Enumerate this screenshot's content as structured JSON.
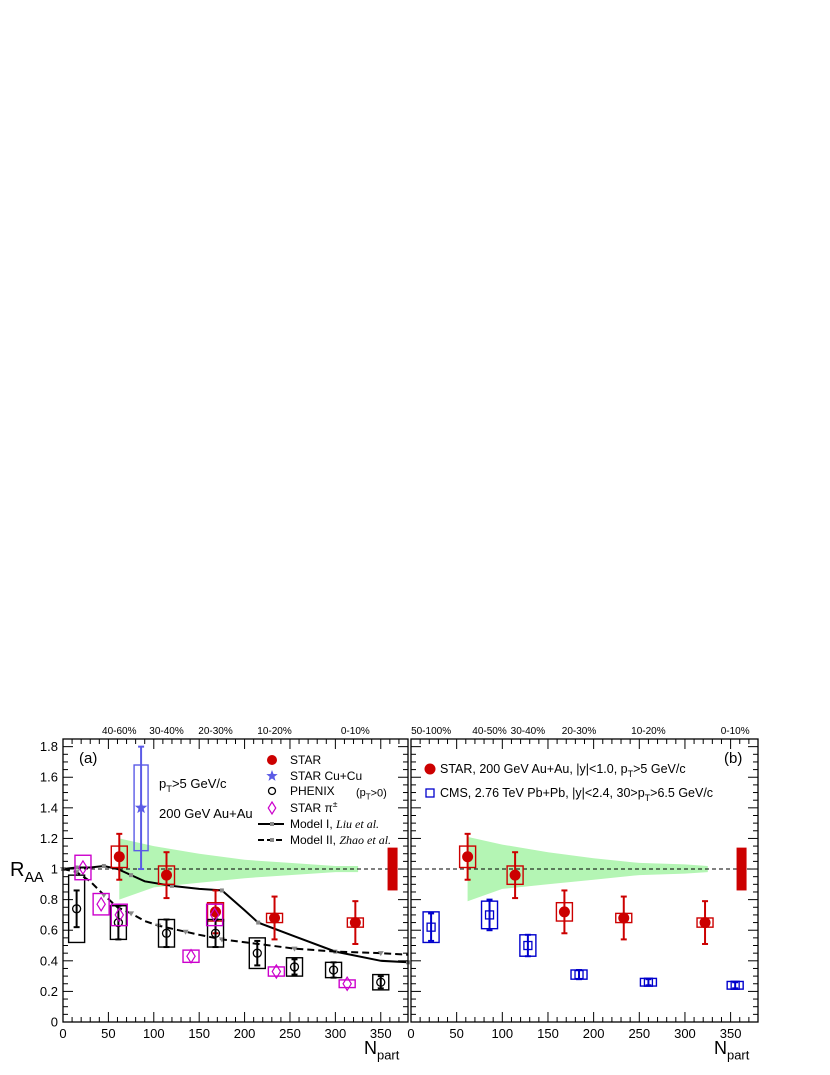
{
  "colors": {
    "star": "#cc0000",
    "star_cucu": "#5b5be6",
    "phenix": "#000000",
    "pion": "#cc00cc",
    "cms": "#0000cc",
    "band": "#b4f5b4",
    "model": "#000000",
    "model_marker": "#888888"
  },
  "chart_data": [
    {
      "type": "scatter",
      "panel_label": "(a)",
      "xlabel": "N",
      "xlabel_sub": "part",
      "ylabel": "R",
      "ylabel_sub": "AA",
      "xlim": [
        0,
        380
      ],
      "ylim": [
        0,
        1.85
      ],
      "x_ticks": [
        "0",
        "50",
        "100",
        "150",
        "200",
        "250",
        "300",
        "350"
      ],
      "y_ticks": [
        "0",
        "0.2",
        "0.4",
        "0.6",
        "0.8",
        "1",
        "1.2",
        "1.4",
        "1.6",
        "1.8"
      ],
      "centrality_labels": [
        {
          "x": 62,
          "text": "40-60%"
        },
        {
          "x": 114,
          "text": "30-40%"
        },
        {
          "x": 168,
          "text": "20-30%"
        },
        {
          "x": 233,
          "text": "10-20%"
        },
        {
          "x": 322,
          "text": "0-10%"
        }
      ],
      "texts": {
        "cut_main": "p",
        "cut_sub": "T",
        "cut_tail": ">5 GeV/c",
        "system": "200 GeV Au+Au"
      },
      "legend": [
        {
          "marker": "filled-circle",
          "color_key": "star",
          "label": "STAR"
        },
        {
          "marker": "star",
          "color_key": "star_cucu",
          "label": "STAR Cu+Cu"
        },
        {
          "marker": "open-circle",
          "color_key": "phenix",
          "label": "PHENIX",
          "note_main": "(p",
          "note_sub": "T",
          "note_tail": ">0)"
        },
        {
          "marker": "open-diamond",
          "color_key": "pion",
          "label": "STAR π",
          "label_sup": "±"
        },
        {
          "marker": "solid-line",
          "color_key": "model",
          "label": "Model I, ",
          "label_italic": "Liu et al."
        },
        {
          "marker": "dashed-line",
          "color_key": "model",
          "label": "Model II, ",
          "label_italic": "Zhao et al."
        }
      ],
      "series": [
        {
          "name": "STAR",
          "marker": "filled-circle",
          "color_key": "star",
          "x": [
            62,
            114,
            168,
            233,
            322
          ],
          "y": [
            1.08,
            0.96,
            0.72,
            0.68,
            0.65
          ],
          "err": [
            0.15,
            0.15,
            0.14,
            0.14,
            0.14
          ],
          "sys": [
            0.07,
            0.06,
            0.06,
            0.03,
            0.03
          ]
        },
        {
          "name": "STAR Cu+Cu",
          "marker": "star",
          "color_key": "star_cucu",
          "x": [
            86
          ],
          "y": [
            1.4
          ],
          "err": [
            0.4
          ],
          "sys": [
            0.28
          ]
        },
        {
          "name": "PHENIX",
          "marker": "open-circle",
          "color_key": "phenix",
          "x": [
            15,
            61,
            114,
            168,
            214,
            255,
            298,
            350
          ],
          "y": [
            0.74,
            0.65,
            0.58,
            0.58,
            0.45,
            0.36,
            0.34,
            0.26
          ],
          "err": [
            0.12,
            0.11,
            0.09,
            0.09,
            0.08,
            0.05,
            0.05,
            0.04
          ],
          "sys": [
            0.22,
            0.11,
            0.09,
            0.09,
            0.1,
            0.06,
            0.05,
            0.05
          ]
        },
        {
          "name": "STAR π±",
          "marker": "open-diamond",
          "color_key": "pion",
          "x": [
            22,
            42,
            62,
            141,
            167,
            235,
            313
          ],
          "y": [
            1.01,
            0.77,
            0.7,
            0.43,
            0.7,
            0.33,
            0.25
          ],
          "err": [
            0,
            0,
            0,
            0,
            0,
            0,
            0
          ],
          "sys": [
            0.08,
            0.07,
            0.07,
            0.04,
            0.07,
            0.03,
            0.025
          ]
        }
      ],
      "models": [
        {
          "name": "Model I",
          "style": "solid",
          "x": [
            0,
            15,
            30,
            45,
            60,
            75,
            90,
            120,
            150,
            175,
            200,
            215,
            255,
            300,
            350,
            380
          ],
          "y": [
            1.0,
            1.01,
            1.01,
            1.02,
            1.0,
            0.96,
            0.92,
            0.89,
            0.87,
            0.86,
            0.73,
            0.65,
            0.56,
            0.46,
            0.4,
            0.39
          ]
        },
        {
          "name": "Model II",
          "style": "dashed",
          "x": [
            0,
            15,
            30,
            45,
            60,
            75,
            90,
            105,
            120,
            135,
            150,
            175,
            215,
            255,
            300,
            350,
            380
          ],
          "y": [
            1.0,
            0.98,
            0.92,
            0.83,
            0.75,
            0.71,
            0.66,
            0.63,
            0.61,
            0.59,
            0.57,
            0.54,
            0.51,
            0.48,
            0.46,
            0.45,
            0.44
          ]
        }
      ],
      "band": {
        "x": [
          62,
          100,
          150,
          200,
          250,
          300,
          325
        ],
        "upper": [
          1.2,
          1.15,
          1.1,
          1.06,
          1.04,
          1.02,
          1.02
        ],
        "lower": [
          0.8,
          0.88,
          0.91,
          0.94,
          0.96,
          0.98,
          0.98
        ]
      },
      "norm_box": {
        "x": 363,
        "y_low": 0.86,
        "y_high": 1.14
      },
      "reference_line": 1
    },
    {
      "type": "scatter",
      "panel_label": "(b)",
      "xlabel": "N",
      "xlabel_sub": "part",
      "xlim": [
        0,
        380
      ],
      "ylim": [
        0,
        1.85
      ],
      "x_ticks": [
        "0",
        "50",
        "100",
        "150",
        "200",
        "250",
        "300",
        "350"
      ],
      "centrality_labels": [
        {
          "x": 22,
          "text": "50-100%"
        },
        {
          "x": 86,
          "text": "40-50%"
        },
        {
          "x": 128,
          "text": "30-40%"
        },
        {
          "x": 184,
          "text": "20-30%"
        },
        {
          "x": 260,
          "text": "10-20%"
        },
        {
          "x": 355,
          "text": "0-10%"
        }
      ],
      "legend": [
        {
          "marker": "filled-circle",
          "color_key": "star",
          "label": "STAR, 200 GeV Au+Au, |y|<1.0, p",
          "label_sub": "T",
          "label_tail": ">5 GeV/c"
        },
        {
          "marker": "open-square",
          "color_key": "cms",
          "label": "CMS, 2.76 TeV Pb+Pb, |y|<2.4, 30>p",
          "label_sub": "T",
          "label_tail": ">6.5 GeV/c"
        }
      ],
      "series": [
        {
          "name": "STAR",
          "marker": "filled-circle",
          "color_key": "star",
          "x": [
            62,
            114,
            168,
            233,
            322
          ],
          "y": [
            1.08,
            0.96,
            0.72,
            0.68,
            0.65
          ],
          "err": [
            0.15,
            0.15,
            0.14,
            0.14,
            0.14
          ],
          "sys": [
            0.07,
            0.06,
            0.06,
            0.03,
            0.03
          ]
        },
        {
          "name": "CMS",
          "marker": "open-square",
          "color_key": "cms",
          "x": [
            22,
            86,
            128,
            184,
            260,
            355
          ],
          "y": [
            0.62,
            0.7,
            0.5,
            0.31,
            0.26,
            0.24
          ],
          "err": [
            0.09,
            0.1,
            0.07,
            0.03,
            0.02,
            0.02
          ],
          "sys": [
            0.1,
            0.09,
            0.07,
            0.03,
            0.025,
            0.025
          ]
        }
      ],
      "band": {
        "x": [
          62,
          100,
          150,
          200,
          250,
          300,
          325
        ],
        "upper": [
          1.21,
          1.16,
          1.11,
          1.07,
          1.04,
          1.03,
          1.02
        ],
        "lower": [
          0.79,
          0.87,
          0.9,
          0.93,
          0.96,
          0.97,
          0.98
        ]
      },
      "norm_box": {
        "x": 362,
        "y_low": 0.86,
        "y_high": 1.14
      },
      "reference_line": 1
    }
  ]
}
